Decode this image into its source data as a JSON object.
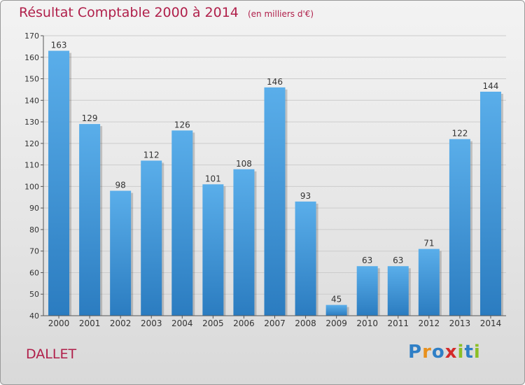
{
  "title": {
    "main": "Résultat Comptable 2000 à 2014",
    "unit": "(en milliers d'€)"
  },
  "commune": "DALLET",
  "logo": {
    "text": "Proxiti",
    "letters": [
      "P",
      "r",
      "o",
      "x",
      "i",
      "t",
      "i"
    ],
    "colors": [
      "#2f7fc6",
      "#e8901d",
      "#2f7fc6",
      "#d42a2a",
      "#8cbf26",
      "#2f7fc6",
      "#8cbf26"
    ]
  },
  "colors": {
    "title": "#b01f4a",
    "bar_top": "#5aaeea",
    "bar_bottom": "#2b7cc0",
    "axis": "#555555",
    "grid": "#cccccc"
  },
  "chart_data": {
    "type": "bar",
    "title": "Résultat Comptable 2000 à 2014",
    "subtitle": "(en milliers d'€)",
    "xlabel": "",
    "ylabel": "",
    "categories": [
      "2000",
      "2001",
      "2002",
      "2003",
      "2004",
      "2005",
      "2006",
      "2007",
      "2008",
      "2009",
      "2010",
      "2011",
      "2012",
      "2013",
      "2014"
    ],
    "values": [
      163,
      129,
      98,
      112,
      126,
      101,
      108,
      146,
      93,
      45,
      63,
      63,
      71,
      122,
      144
    ],
    "ylim": [
      40,
      170
    ],
    "yticks": [
      40,
      50,
      60,
      70,
      80,
      90,
      100,
      110,
      120,
      130,
      140,
      150,
      160,
      170
    ],
    "grid": true
  }
}
